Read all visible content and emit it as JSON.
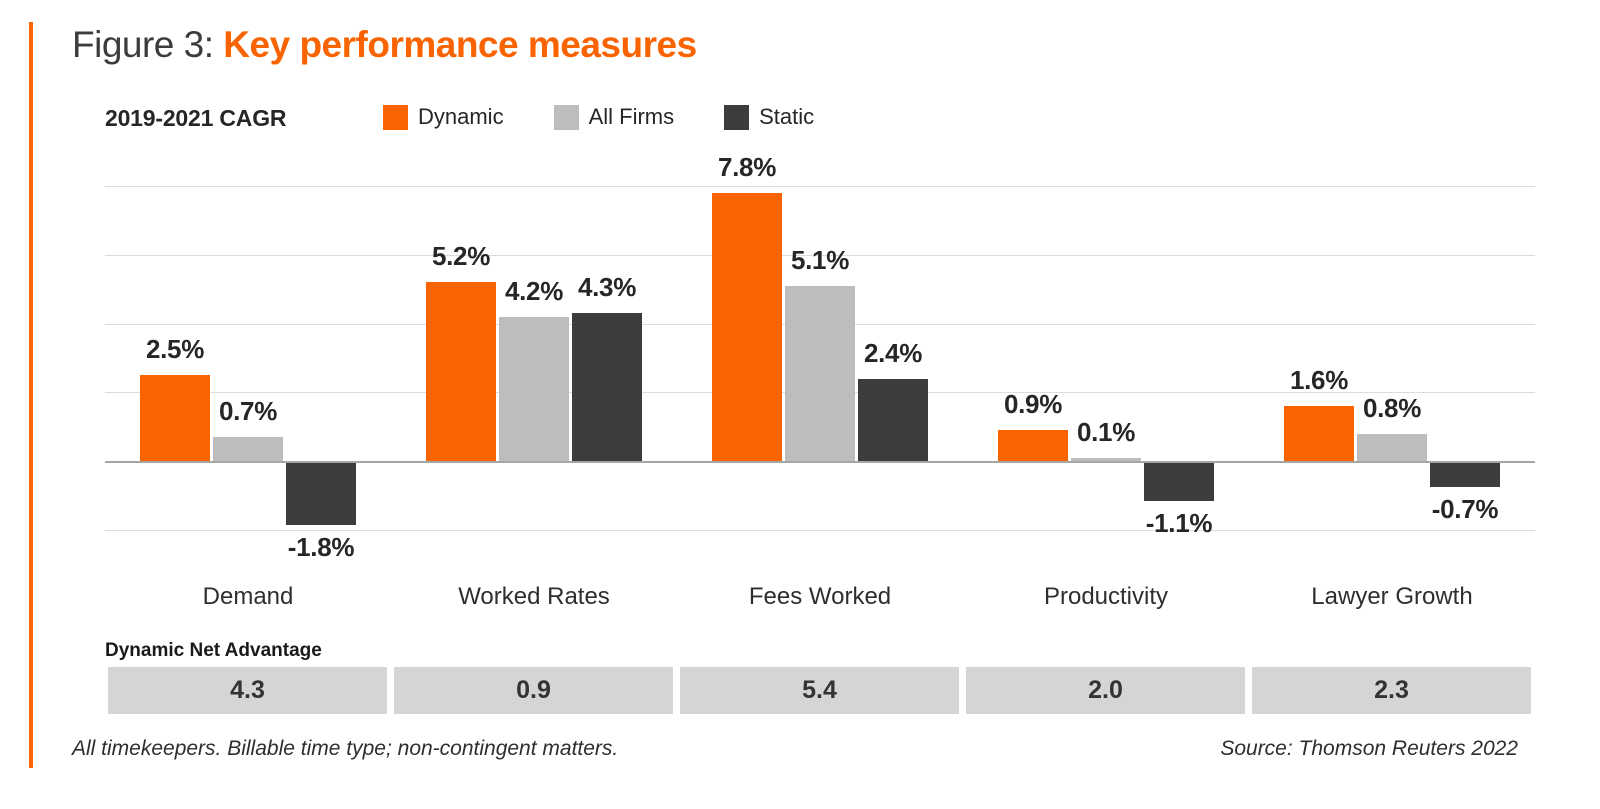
{
  "figure": {
    "label": "Figure 3:",
    "title": "Key performance measures"
  },
  "colors": {
    "accent_orange": "#F96400",
    "all_firms_gray": "#BDBDBD",
    "static_dark": "#3C3C3C",
    "advantage_box_gray": "#D5D5D5"
  },
  "chart_data": {
    "type": "bar",
    "title": "2019-2021 CAGR",
    "categories": [
      "Demand",
      "Worked Rates",
      "Fees Worked",
      "Productivity",
      "Lawyer Growth"
    ],
    "series": [
      {
        "name": "Dynamic",
        "color": "#F96400",
        "values": [
          2.5,
          5.2,
          7.8,
          0.9,
          1.6
        ]
      },
      {
        "name": "All Firms",
        "color": "#BDBDBD",
        "values": [
          0.7,
          4.2,
          5.1,
          0.1,
          0.8
        ]
      },
      {
        "name": "Static",
        "color": "#3C3C3C",
        "values": [
          -1.8,
          4.3,
          2.4,
          -1.1,
          -0.7
        ]
      }
    ],
    "value_labels": [
      [
        "2.5%",
        "5.2%",
        "7.8%",
        "0.9%",
        "1.6%"
      ],
      [
        "0.7%",
        "4.2%",
        "5.1%",
        "0.1%",
        "0.8%"
      ],
      [
        "-1.8%",
        "4.3%",
        "2.4%",
        "-1.1%",
        "-0.7%"
      ]
    ],
    "ylim": [
      -2,
      8
    ],
    "gridline_step": 2,
    "grid": true,
    "legend_position": "top",
    "xlabel": "",
    "ylabel": ""
  },
  "net_advantage": {
    "label": "Dynamic Net Advantage",
    "values": [
      "4.3",
      "0.9",
      "5.4",
      "2.0",
      "2.3"
    ]
  },
  "footer": {
    "note": "All timekeepers. Billable time type; non-contingent matters.",
    "source": "Source: Thomson Reuters 2022"
  }
}
